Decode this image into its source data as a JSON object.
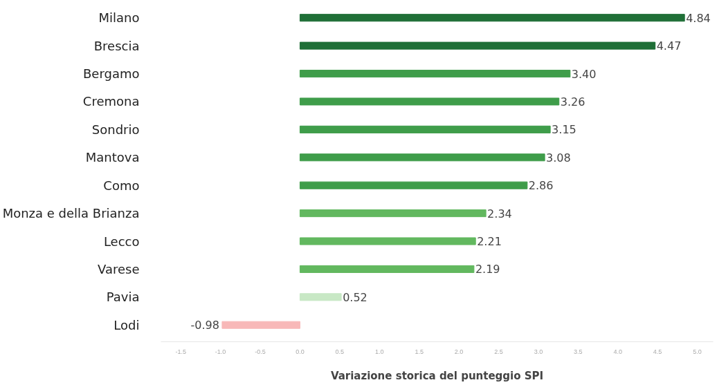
{
  "chart_data": {
    "type": "bar",
    "orientation": "horizontal",
    "xlabel": "Variazione storica del punteggio SPI",
    "categories": [
      "Milano",
      "Brescia",
      "Bergamo",
      "Cremona",
      "Sondrio",
      "Mantova",
      "Como",
      "Monza e della Brianza",
      "Lecco",
      "Varese",
      "Pavia",
      "Lodi"
    ],
    "values": [
      4.84,
      4.47,
      3.4,
      3.26,
      3.15,
      3.08,
      2.86,
      2.34,
      2.21,
      2.19,
      0.52,
      -0.98
    ],
    "value_labels": [
      "4.84",
      "4.47",
      "3.40",
      "3.26",
      "3.15",
      "3.08",
      "2.86",
      "2.34",
      "2.21",
      "2.19",
      "0.52",
      "-0.98"
    ],
    "colors": [
      "#1f6f37",
      "#1f6f37",
      "#3f9d4a",
      "#3f9d4a",
      "#3f9d4a",
      "#3f9d4a",
      "#3f9d4a",
      "#62b85f",
      "#62b85f",
      "#62b85f",
      "#c8e8c5",
      "#f8b8b8"
    ],
    "xlim": [
      -1.75,
      5.2
    ],
    "xticks": [
      {
        "value": -1.5,
        "label": "-1.5"
      },
      {
        "value": -1.0,
        "label": "-1.0"
      },
      {
        "value": -0.5,
        "label": "-0.5"
      },
      {
        "value": 0,
        "label": "0.0"
      },
      {
        "value": 0.5,
        "label": "0.5"
      },
      {
        "value": 1,
        "label": "1.0"
      },
      {
        "value": 1.5,
        "label": "1.5"
      },
      {
        "value": 2,
        "label": "2.0"
      },
      {
        "value": 2.5,
        "label": "2.5"
      },
      {
        "value": 3,
        "label": "3.0"
      },
      {
        "value": 3.5,
        "label": "3.5"
      },
      {
        "value": 4,
        "label": "4.0"
      },
      {
        "value": 4.5,
        "label": "4.5"
      },
      {
        "value": 5,
        "label": "5.0"
      }
    ],
    "grid": false
  }
}
